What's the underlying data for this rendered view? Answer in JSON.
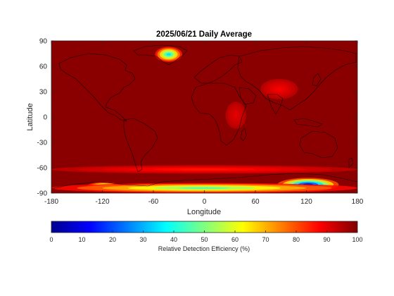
{
  "chart_data": {
    "type": "heatmap",
    "title": "2025/06/21 Daily Average",
    "xlabel": "Longitude",
    "ylabel": "Latitude",
    "xlim": [
      -180,
      180
    ],
    "ylim": [
      -90,
      90
    ],
    "xticks": [
      -180,
      -120,
      -60,
      0,
      60,
      120,
      180
    ],
    "yticks": [
      90,
      60,
      30,
      0,
      -30,
      -60,
      -90
    ],
    "colorbar": {
      "label": "Relative Detection Efficiency (%)",
      "ticks": [
        0,
        10,
        20,
        30,
        40,
        50,
        60,
        70,
        80,
        90,
        100
      ],
      "range": [
        0,
        100
      ],
      "colormap": "jet",
      "position": "bottom"
    },
    "background_value": 95,
    "regions": [
      {
        "name": "Greenland",
        "lon": -42,
        "lat": 74,
        "min_value": 35
      },
      {
        "name": "East Antarctica",
        "lon": 122,
        "lat": -80,
        "min_value": 5
      },
      {
        "name": "West Antarctica",
        "lon": -118,
        "lat": -82,
        "min_value": 30
      },
      {
        "name": "Antarctica coastal belt",
        "lon": 0,
        "lat": -84,
        "min_value": 45
      },
      {
        "name": "Southern Ocean band",
        "lon": 0,
        "lat": -62,
        "min_value": 85
      },
      {
        "name": "Tibetan Plateau",
        "lon": 88,
        "lat": 33,
        "min_value": 88
      },
      {
        "name": "East Africa",
        "lon": 37,
        "lat": 2,
        "min_value": 90
      }
    ]
  }
}
